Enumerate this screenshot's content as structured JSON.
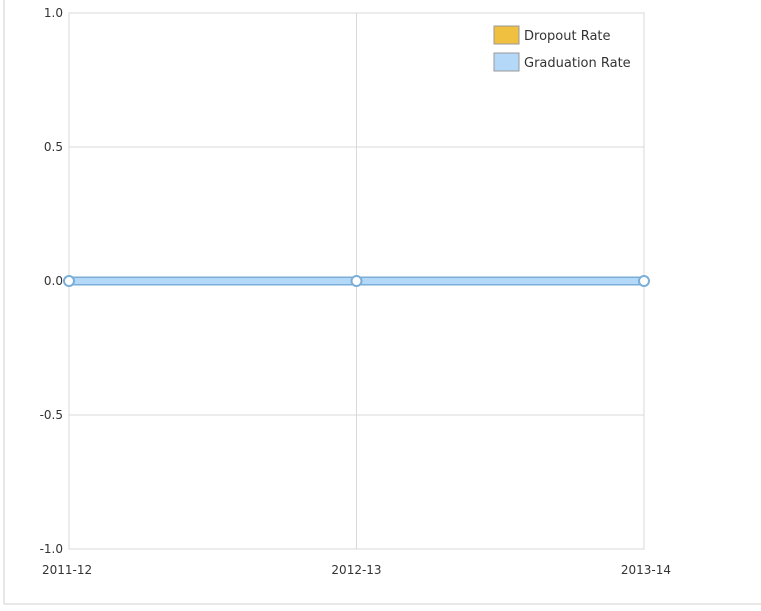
{
  "chart_data": {
    "type": "line",
    "categories": [
      "2011-12",
      "2012-13",
      "2013-14"
    ],
    "series": [
      {
        "name": "Dropout Rate",
        "values": [
          0,
          0,
          0
        ],
        "color": "#f0c040"
      },
      {
        "name": "Graduation Rate",
        "values": [
          0,
          0,
          0
        ],
        "color": "#b4d8f8"
      }
    ],
    "yticks": [
      "-1.0",
      "-0.5",
      "0.0",
      "0.5",
      "1.0"
    ],
    "ylim": [
      -1.0,
      1.0
    ],
    "grid": true,
    "legend": "top-right"
  }
}
